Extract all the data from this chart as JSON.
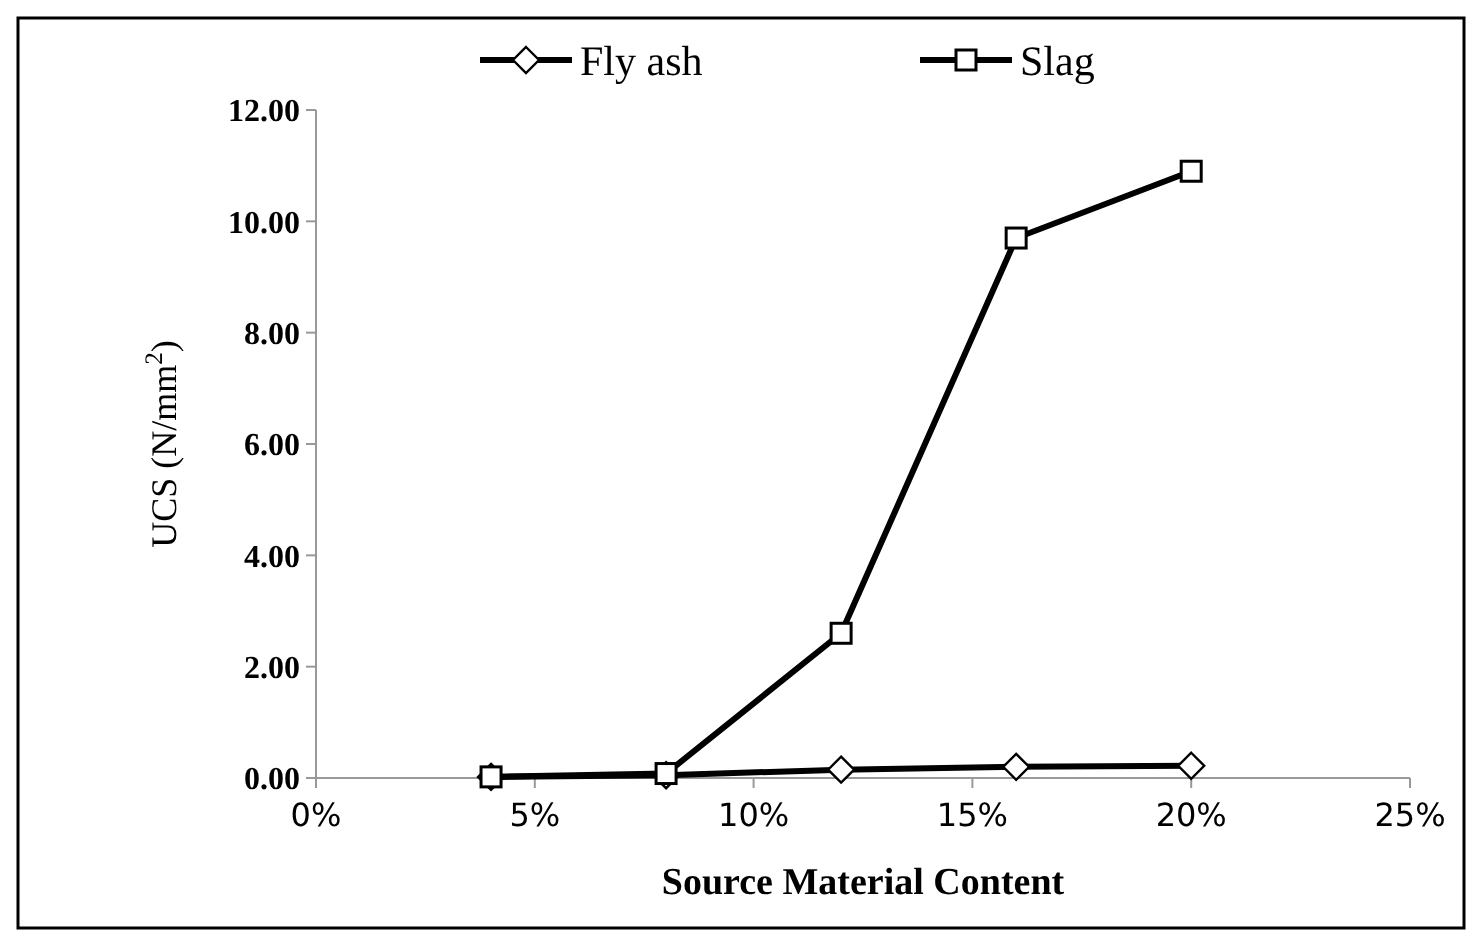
{
  "chart_data": {
    "type": "line",
    "xlabel": "Source Material Content",
    "ylabel": "UCS (N/mm$^{2}$)",
    "x": [
      4,
      8,
      12,
      16,
      20
    ],
    "series": [
      {
        "name": "Fly ash",
        "color": "#000000",
        "marker": "diamond",
        "values": [
          0.02,
          0.05,
          0.15,
          0.2,
          0.22
        ]
      },
      {
        "name": "Slag",
        "color": "#000000",
        "marker": "square",
        "values": [
          0.02,
          0.08,
          2.6,
          9.7,
          10.9
        ]
      }
    ],
    "xlim": [
      0,
      25
    ],
    "xticks": [
      {
        "value": 0,
        "label": "0%"
      },
      {
        "value": 5,
        "label": "5%"
      },
      {
        "value": 10,
        "label": "10%"
      },
      {
        "value": 15,
        "label": "15%"
      },
      {
        "value": 20,
        "label": "20%"
      },
      {
        "value": 25,
        "label": "25%"
      }
    ],
    "ylim": [
      0,
      12
    ],
    "yticks": [
      {
        "value": 0,
        "label": "0.00"
      },
      {
        "value": 2,
        "label": "2.00"
      },
      {
        "value": 4,
        "label": "4.00"
      },
      {
        "value": 6,
        "label": "6.00"
      },
      {
        "value": 8,
        "label": "8.00"
      },
      {
        "value": 10,
        "label": "10.00"
      },
      {
        "value": 12,
        "label": "12.00"
      }
    ],
    "grid": false,
    "legend": "top",
    "line_style": "solid"
  }
}
